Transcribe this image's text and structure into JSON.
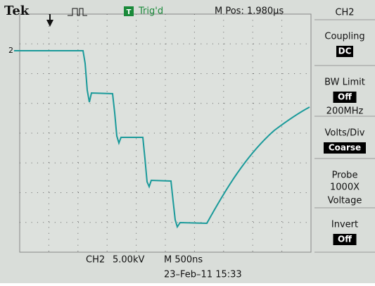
{
  "header": {
    "brand": "Tek",
    "trigger_icon": "T",
    "trigger_status": "Trig'd",
    "position": "M Pos: 1.980µs"
  },
  "channel_marker": "2",
  "menu": {
    "title": "CH2",
    "items": [
      {
        "label": "Coupling",
        "value": "DC"
      },
      {
        "label": "BW Limit",
        "value": "Off",
        "note": "200MHz"
      },
      {
        "label": "Volts/Div",
        "value": "Coarse"
      },
      {
        "label": "Probe",
        "lines": [
          "1000X",
          "Voltage"
        ]
      },
      {
        "label": "Invert",
        "value": "Off"
      }
    ]
  },
  "footer": {
    "channel": "CH2",
    "scale": "5.00kV",
    "timebase": "M 500ns",
    "datetime": "23–Feb–11 15:33"
  }
}
